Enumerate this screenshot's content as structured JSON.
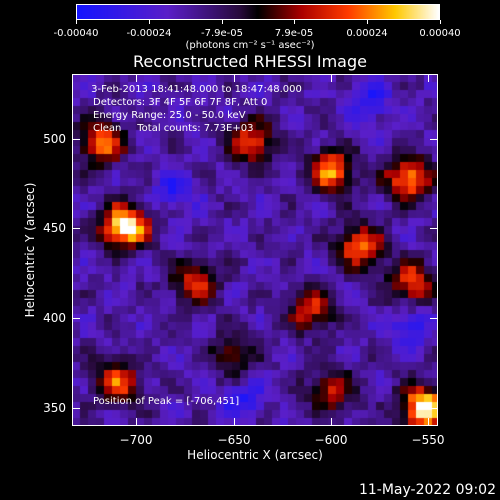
{
  "colorbar": {
    "min": -0.0004,
    "max": 0.0004,
    "tick_labels": [
      "-0.00040",
      "-0.00024",
      "-7.9e-05",
      "7.9e-05",
      "0.00024",
      "0.00040"
    ],
    "tick_values": [
      -0.0004,
      -0.00024,
      -7.9e-05,
      7.9e-05,
      0.00024,
      0.0004
    ],
    "units": "(photons cm⁻² s⁻¹ asec⁻²)",
    "colormap": "rhessi-blue-purple-red-yellow-white"
  },
  "chart_data": {
    "type": "heatmap",
    "title": "Reconstructed RHESSI Image",
    "xlabel": "Heliocentric X (arcsec)",
    "ylabel": "Heliocentric Y (arcsec)",
    "xlim": [
      -733,
      -545
    ],
    "ylim": [
      340,
      536
    ],
    "x_ticks": [
      -700,
      -650,
      -600,
      -550
    ],
    "x_tick_labels": [
      "−700",
      "−650",
      "−600",
      "−550"
    ],
    "y_ticks": [
      350,
      400,
      450,
      500
    ],
    "y_tick_labels": [
      "350",
      "400",
      "450",
      "500"
    ],
    "peak": {
      "x": -706,
      "y": 451
    },
    "hotspots": [
      {
        "x": -706,
        "y": 451,
        "intensity": 1.0
      },
      {
        "x": -552,
        "y": 350,
        "intensity": 0.95
      },
      {
        "x": -718,
        "y": 498,
        "intensity": 0.7
      },
      {
        "x": -640,
        "y": 498,
        "intensity": 0.6
      },
      {
        "x": -600,
        "y": 482,
        "intensity": 0.7
      },
      {
        "x": -560,
        "y": 478,
        "intensity": 0.75
      },
      {
        "x": -585,
        "y": 440,
        "intensity": 0.65
      },
      {
        "x": -670,
        "y": 420,
        "intensity": 0.55
      },
      {
        "x": -610,
        "y": 405,
        "intensity": 0.55
      },
      {
        "x": -558,
        "y": 420,
        "intensity": 0.6
      },
      {
        "x": -710,
        "y": 365,
        "intensity": 0.6
      },
      {
        "x": -600,
        "y": 360,
        "intensity": 0.5
      },
      {
        "x": -650,
        "y": 380,
        "intensity": 0.4
      }
    ],
    "coldspots": [
      {
        "x": -645,
        "y": 355
      },
      {
        "x": -580,
        "y": 520
      },
      {
        "x": -680,
        "y": 470
      },
      {
        "x": -560,
        "y": 395
      }
    ]
  },
  "annotations": {
    "time_range": " 3-Feb-2013 18:41:48.000 to 18:47:48.000",
    "detectors": "Detectors: 3F 4F 5F 6F 7F 8F, Att 0",
    "energy": "Energy Range: 25.0 - 50.0 keV",
    "clean": "Clean     Total counts: 7.73E+03",
    "peak_label": "Position of Peak = [-706,451]"
  },
  "footer": {
    "date": "11-May-2022 09:02"
  }
}
